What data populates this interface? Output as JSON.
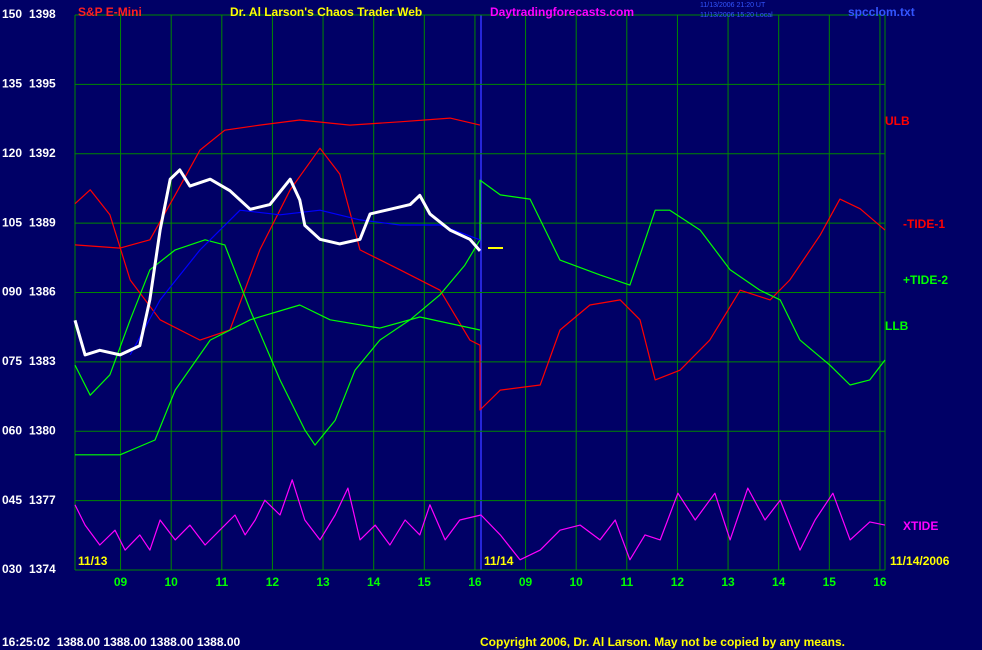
{
  "chart_data": {
    "type": "line",
    "title": "Dr. Al Larson's Chaos Trader Web",
    "symbol": "S&P E-Mini",
    "website": "Daytradingforecasts.com",
    "file": "spcclom.txt",
    "timestamps": [
      "11/13/2006 21:20 UT",
      "11/13/2006 15:20 Local"
    ],
    "status": "16:25:02  1388.00 1388.00 1388.00 1388.00",
    "copyright": "Copyright 2006, Dr. Al Larson. May not be copied by any means.",
    "date_labels": [
      "11/13",
      "11/14",
      "11/14/2006"
    ],
    "xlim": [
      0,
      16
    ],
    "xticks": [
      {
        "value": 0.9,
        "label": "09"
      },
      {
        "value": 1.9,
        "label": "10"
      },
      {
        "value": 2.9,
        "label": "11"
      },
      {
        "value": 3.9,
        "label": "12"
      },
      {
        "value": 4.9,
        "label": "13"
      },
      {
        "value": 5.9,
        "label": "14"
      },
      {
        "value": 6.9,
        "label": "15"
      },
      {
        "value": 7.9,
        "label": "16"
      },
      {
        "value": 8.9,
        "label": "09"
      },
      {
        "value": 9.9,
        "label": "10"
      },
      {
        "value": 10.9,
        "label": "11"
      },
      {
        "value": 11.9,
        "label": "12"
      },
      {
        "value": 12.9,
        "label": "13"
      },
      {
        "value": 13.9,
        "label": "14"
      },
      {
        "value": 14.9,
        "label": "15"
      },
      {
        "value": 15.9,
        "label": "16"
      }
    ],
    "ylim": [
      30,
      150
    ],
    "yticks": [
      {
        "value": 30,
        "label": "030"
      },
      {
        "value": 45,
        "label": "045"
      },
      {
        "value": 60,
        "label": "060"
      },
      {
        "value": 75,
        "label": "075"
      },
      {
        "value": 90,
        "label": "090"
      },
      105,
      120,
      135,
      150
    ],
    "y2lim": [
      1374,
      1398
    ],
    "y2ticks": [
      1374,
      1377,
      1380,
      1383,
      1386,
      1389,
      1392,
      1395,
      1398
    ],
    "grid": true,
    "series": [
      {
        "name": "ULB",
        "color": "#ff0000",
        "x": [
          0,
          0.89,
          1.48,
          1.98,
          2.47,
          2.96,
          3.65,
          4.44,
          5.43,
          6.42,
          7.41,
          8.0
        ],
        "values": [
          100.3,
          99.6,
          101.4,
          111.1,
          120.8,
          125.1,
          126.2,
          127.3,
          126.2,
          126.9,
          127.7,
          126.2
        ]
      },
      {
        "name": "-TIDE-1",
        "color": "#ff0000",
        "x": [
          0,
          0.3,
          0.69,
          1.09,
          1.68,
          2.47,
          3.06,
          3.65,
          4.25,
          4.84,
          5.23,
          5.63,
          6.42,
          7.21,
          7.8,
          8.0,
          8.0,
          8.4,
          9.19,
          9.58,
          10.17,
          10.77,
          11.16,
          11.46,
          11.95,
          12.54,
          13.14,
          13.73,
          14.12,
          14.72,
          15.11,
          15.51,
          16.0
        ],
        "values": [
          109.2,
          112.2,
          106.8,
          92.7,
          84.1,
          79.7,
          81.9,
          99.2,
          112.2,
          121.2,
          115.6,
          99.2,
          94.9,
          90.5,
          79.7,
          78.6,
          64.6,
          68.9,
          70.0,
          81.9,
          87.3,
          88.4,
          84.1,
          71.1,
          73.2,
          79.7,
          90.5,
          88.4,
          92.7,
          102.4,
          110.2,
          108.1,
          103.5
        ]
      },
      {
        "name": "+TIDE-2",
        "color": "#00ff00",
        "x": [
          0,
          0.3,
          0.69,
          1.09,
          1.48,
          1.98,
          2.57,
          2.96,
          3.46,
          4.05,
          4.54,
          4.74,
          5.14,
          5.53,
          6.02,
          6.62,
          7.21,
          7.7,
          8.0,
          8.0,
          8.4,
          8.99,
          9.58,
          10.37,
          10.96,
          11.46,
          11.75,
          12.35,
          12.94,
          13.53,
          13.93,
          14.32,
          14.91,
          15.31,
          15.7,
          16.0
        ],
        "values": [
          74.3,
          67.8,
          72.2,
          84.1,
          94.9,
          99.2,
          101.4,
          100.3,
          86.2,
          71.1,
          60.3,
          57.0,
          62.4,
          73.2,
          79.7,
          84.1,
          89.5,
          95.9,
          101.4,
          114.3,
          111.1,
          110.2,
          97.0,
          93.8,
          91.6,
          107.8,
          107.8,
          103.5,
          94.9,
          90.5,
          88.4,
          79.7,
          74.3,
          70.0,
          71.1,
          75.4
        ]
      },
      {
        "name": "LLB",
        "color": "#00ff00",
        "x": [
          0,
          0.89,
          1.58,
          1.98,
          2.67,
          3.46,
          4.44,
          5.04,
          6.02,
          6.81,
          8.0
        ],
        "values": [
          54.9,
          54.9,
          58.1,
          68.9,
          79.7,
          84.1,
          87.3,
          84.1,
          82.3,
          84.7,
          81.9
        ]
      },
      {
        "name": "XTIDE",
        "color": "#ff00ff",
        "x": [
          0,
          0.2,
          0.49,
          0.79,
          0.99,
          1.28,
          1.48,
          1.68,
          1.98,
          2.27,
          2.57,
          2.86,
          3.16,
          3.36,
          3.56,
          3.75,
          4.05,
          4.29,
          4.54,
          4.84,
          5.14,
          5.39,
          5.63,
          5.93,
          6.22,
          6.52,
          6.81,
          7.01,
          7.31,
          7.6,
          8.02,
          8.4,
          8.79,
          9.19,
          9.58,
          9.98,
          10.37,
          10.67,
          10.96,
          11.26,
          11.56,
          11.91,
          12.25,
          12.64,
          12.94,
          13.29,
          13.63,
          13.93,
          14.32,
          14.62,
          14.97,
          15.31,
          15.7,
          16.0
        ],
        "values": [
          44.1,
          39.7,
          35.4,
          38.6,
          34.3,
          37.6,
          34.3,
          40.8,
          36.5,
          39.7,
          35.4,
          38.6,
          41.9,
          37.6,
          40.8,
          45.1,
          41.9,
          49.5,
          40.8,
          36.5,
          41.9,
          47.7,
          36.5,
          39.7,
          35.4,
          40.8,
          37.6,
          44.1,
          36.5,
          40.8,
          41.9,
          37.6,
          32.2,
          34.3,
          38.6,
          39.7,
          36.5,
          40.8,
          32.2,
          37.6,
          36.5,
          46.6,
          40.8,
          46.6,
          36.5,
          47.7,
          40.8,
          45.1,
          34.3,
          40.8,
          46.6,
          36.5,
          40.4,
          39.7
        ]
      },
      {
        "color": "#0000ff",
        "x": [
          1.09,
          1.68,
          2.47,
          3.26,
          4.05,
          4.84,
          5.63,
          6.42,
          7.21,
          8.0
        ],
        "values": [
          76.5,
          88.4,
          99.2,
          107.8,
          106.8,
          107.8,
          105.7,
          104.6,
          104.6,
          101.4
        ]
      },
      {
        "color": "#ffffff",
        "axis": "y2",
        "x": [
          0,
          0.2,
          0.49,
          0.89,
          1.28,
          1.48,
          1.68,
          1.88,
          2.07,
          2.27,
          2.67,
          3.06,
          3.46,
          3.85,
          4.25,
          4.44,
          4.54,
          4.84,
          5.23,
          5.63,
          5.83,
          6.22,
          6.62,
          6.81,
          7.01,
          7.41,
          7.8,
          8.0
        ],
        "values": [
          1384.8,
          1383.3,
          1383.5,
          1383.3,
          1383.7,
          1385.7,
          1388.7,
          1390.9,
          1391.3,
          1390.6,
          1390.9,
          1390.4,
          1389.6,
          1389.8,
          1390.9,
          1390.0,
          1388.9,
          1388.3,
          1388.1,
          1388.3,
          1389.4,
          1389.6,
          1389.8,
          1390.2,
          1389.4,
          1388.7,
          1388.3,
          1387.8
        ]
      }
    ]
  }
}
